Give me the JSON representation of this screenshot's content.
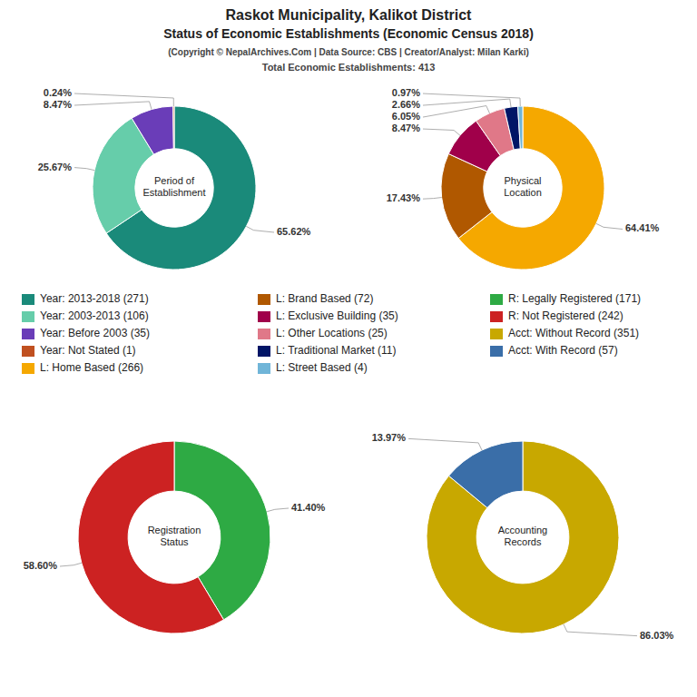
{
  "title": [
    "Raskot Municipality, Kalikot District",
    "Status of Economic Establishments (Economic Census 2018)"
  ],
  "subtitle": [
    "(Copyright © NepalArchives.Com | Data Source: CBS | Creator/Analyst: Milan Karki)",
    "Total Economic Establishments: 413"
  ],
  "legend": "center",
  "chart_data": [
    {
      "type": "pie",
      "title": "Period of\nEstablishment",
      "categories": [
        "Year: 2013-2018 (271)",
        "Year: 2003-2013 (106)",
        "Year: Before 2003 (35)",
        "Year: Not Stated (1)"
      ],
      "values": [
        65.62,
        25.67,
        8.47,
        0.24
      ],
      "value_labels": [
        "65.62%",
        "25.67%",
        "8.47%",
        "0.24%"
      ],
      "colors": [
        "#1a8a7a",
        "#66cdaa",
        "#6a3db8",
        "#c05020"
      ],
      "data_labels": true
    },
    {
      "type": "pie",
      "title": "Physical\nLocation",
      "categories": [
        "L: Home Based (266)",
        "L: Brand Based (72)",
        "L: Exclusive Building (35)",
        "L: Other Locations (25)",
        "L: Traditional Market (11)",
        "L: Street Based (4)"
      ],
      "values": [
        64.41,
        17.43,
        8.47,
        6.05,
        2.66,
        0.97
      ],
      "value_labels": [
        "64.41%",
        "17.43%",
        "8.47%",
        "6.05%",
        "2.66%",
        "0.97%"
      ],
      "colors": [
        "#f5a800",
        "#b05800",
        "#a0004a",
        "#e07888",
        "#001566",
        "#70b5d8"
      ],
      "data_labels": true
    },
    {
      "type": "pie",
      "title": "Registration\nStatus",
      "categories": [
        "R: Legally Registered (171)",
        "R: Not Registered (242)"
      ],
      "values": [
        41.4,
        58.6
      ],
      "value_labels": [
        "41.40%",
        "58.60%"
      ],
      "colors": [
        "#2eaa44",
        "#cc2222"
      ],
      "data_labels": true
    },
    {
      "type": "pie",
      "title": "Accounting\nRecords",
      "categories": [
        "Acct: Without Record (351)",
        "Acct: With Record (57)"
      ],
      "values": [
        86.03,
        13.97
      ],
      "value_labels": [
        "86.03%",
        "13.97%"
      ],
      "colors": [
        "#c8a800",
        "#3a6ea8"
      ],
      "data_labels": true
    }
  ]
}
